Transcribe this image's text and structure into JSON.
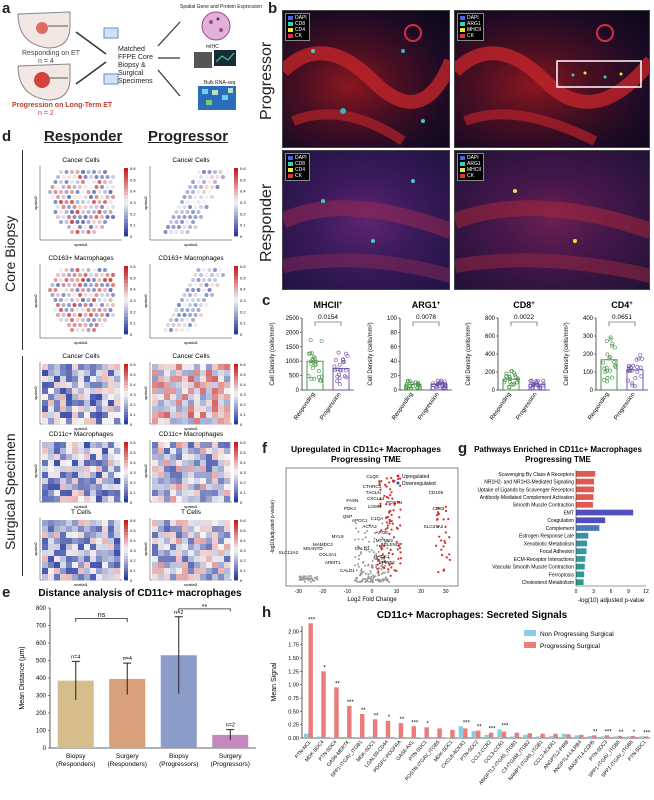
{
  "panel_labels": {
    "a": "a",
    "b": "b",
    "c": "c",
    "d": "d",
    "e": "e",
    "f": "f",
    "g": "g",
    "h": "h"
  },
  "panel_a": {
    "responding": "Responding on ET",
    "responding_n": "n = 4",
    "progression": "Progression on Long-Term ET",
    "progression_n": "n = 2",
    "matched": "Matched FFPE Core Biopsy & Surgical Specimens",
    "spatial_expr": "Spatial Gene and Protein Expression",
    "mihc": "mIHC",
    "bulk": "Bulk RNA-seq"
  },
  "panel_b": {
    "row_progressor": "Progressor",
    "row_responder": "Responder",
    "legend_left": [
      "DAPI",
      "CD8",
      "CD4",
      "CK"
    ],
    "legend_right": [
      "DAPI",
      "ARG1",
      "MHCII",
      "CK"
    ]
  },
  "panel_c": {
    "ylabel": "Cell Density (cells/mm²)",
    "xcats": [
      "Responding",
      "Progression"
    ],
    "plots": [
      {
        "title": "MHCII",
        "sup": "+",
        "p": "0.0154",
        "yticks": [
          "0",
          "500",
          "1000",
          "1500",
          "2000",
          "2500"
        ]
      },
      {
        "title": "ARG1",
        "sup": "+",
        "p": "0.0078",
        "yticks": [
          "0",
          "20",
          "40",
          "60",
          "80",
          "100"
        ]
      },
      {
        "title": "CD8",
        "sup": "+",
        "p": "0.0022",
        "yticks": [
          "0",
          "200",
          "400",
          "600",
          "800"
        ]
      },
      {
        "title": "CD4",
        "sup": "+",
        "p": "0.0651",
        "yticks": [
          "0",
          "100",
          "200",
          "300",
          "400"
        ]
      }
    ]
  },
  "panel_d": {
    "col_responder": "Responder",
    "col_progressor": "Progressor",
    "band_core": "Core Biopsy",
    "band_surgical": "Surgical Specimen",
    "spatial1": "spatial1",
    "spatial2": "spatial2",
    "core_titles": [
      "Cancer Cells",
      "Cancer Cells",
      "CD163+ Macrophages",
      "CD163+ Macrophages"
    ],
    "surg_titles": [
      "Cancer Cells",
      "Cancer Cells",
      "CD11c+ Macrophages",
      "CD11c+ Macrophages",
      "T Cells",
      "T Cells"
    ],
    "cb_ticks": [
      "0.6",
      "0.5",
      "0.4",
      "0.3",
      "0.2",
      "0.1",
      "0"
    ]
  },
  "panel_e": {
    "title": "Distance analysis of CD11c+ macrophages",
    "ylabel": "Mean Distance (µm)",
    "yticks": [
      "0",
      "100",
      "200",
      "300",
      "400",
      "500",
      "600",
      "700",
      "800"
    ],
    "ns": "ns",
    "sig": "**",
    "chart_data": {
      "type": "bar",
      "title": "Distance analysis of CD11c+ macrophages",
      "ylabel": "Mean Distance (µm)",
      "ylim": [
        0,
        800
      ],
      "categories": [
        "Biopsy (Responders)",
        "Surgery (Responders)",
        "Biopsy (Progressors)",
        "Surgery (Progressors)"
      ],
      "values": [
        385,
        395,
        530,
        75
      ],
      "errors": [
        110,
        90,
        220,
        30
      ],
      "n_labels": [
        "n=4",
        "n=4",
        "n=2",
        "n=2"
      ],
      "colors": [
        "#d6be8c",
        "#d9a07c",
        "#8b9cc8",
        "#c388be"
      ]
    },
    "xlabels": [
      [
        "Biopsy",
        "(Responders)"
      ],
      [
        "Surgery",
        "(Responders)"
      ],
      [
        "Biopsy",
        "(Progressors)"
      ],
      [
        "Surgery",
        "(Progressors)"
      ]
    ]
  },
  "panel_f": {
    "title_line1": "Upregulated in CD11c+ Macrophages",
    "title_line2": "Progressing TME",
    "xlabel": "Log2 Fold Change",
    "ylabel": "-log10(adjusted p-value)",
    "legend_up": "Upregulated",
    "legend_down": "Downregulated",
    "xticks": [
      "-30",
      "-20",
      "-10",
      "0",
      "10",
      "20",
      "30"
    ],
    "genes": [
      "C1QC",
      "CTHRC1",
      "TAGLN",
      "CXCL14",
      "FASN",
      "PDK4",
      "LGMN",
      "QSP",
      "APOC1",
      "ACTA2",
      "C1QA",
      "POSTN",
      "APOE",
      "MYL9",
      "MT-ND3",
      "SELENOP",
      "CALD1",
      "RACK1",
      "SPINT2",
      "COL4A1",
      "ARMT1",
      "CALD1",
      "MAMDC2",
      "MSANTD",
      "SLC12A2",
      "CD109",
      "CD83",
      "SLC37A2"
    ]
  },
  "panel_g": {
    "title_line1": "Pathways Enriched in CD11c+ Macrophages",
    "title_line2": "Progressing TME",
    "xlabel": "-log(10) adjusted p-value",
    "xticks": [
      "0",
      "3",
      "6",
      "9",
      "12"
    ],
    "chart_data": {
      "type": "bar",
      "orientation": "horizontal",
      "categories": [
        "Scavenging By Class A Receptors",
        "NR1H2- and NR1H3-Mediated Signaling",
        "Uptake of Ligands by Scavenger Receptors",
        "Antibody-Mediated Complement Activation",
        "Smooth Muscle Contraction",
        "EMT",
        "Coagulation",
        "Complement",
        "Estrogen Response Late",
        "Xenobiotic Metabolism",
        "Focal Adhesion",
        "ECM-Receptor Interactions",
        "Vascular Smooth Muscle Contraction",
        "Ferroptosis",
        "Cholesterol Metabolism"
      ],
      "values": [
        3.3,
        3.1,
        3.1,
        3.0,
        2.9,
        9.8,
        5.0,
        4.0,
        2.1,
        1.9,
        1.8,
        1.6,
        1.5,
        1.4,
        1.3
      ],
      "colors": [
        "#e05a52",
        "#e05a52",
        "#e05a52",
        "#e05a52",
        "#e05a52",
        "#4f4fbd",
        "#4f4fbd",
        "#4b79b8",
        "#3c8fa8",
        "#3c8fa8",
        "#3a97a0",
        "#3a97a0",
        "#2e9a8f",
        "#2e9a8f",
        "#2e9a8f"
      ],
      "xlim": [
        0,
        12
      ]
    }
  },
  "panel_h": {
    "title": "CD11c+ Macrophages: Secreted Signals",
    "ylabel": "Mean Signal",
    "legend_non": "Non Progressing Surgical",
    "legend_prog": "Progressing Surgical",
    "yticks": [
      "0.00",
      "0.25",
      "0.50",
      "0.75",
      "1.00",
      "1.25",
      "1.50",
      "1.75",
      "2.00"
    ],
    "chart_data": {
      "type": "bar",
      "ylim": [
        0,
        2.1
      ],
      "categories": [
        "PTN-NCL",
        "MDK-SDC4",
        "PTN-SDC4",
        "GAS6-MERTK",
        "SPP1-ITGAV_ITGB1",
        "MDK-SDC1",
        "LGALS9-CD44",
        "PDGFC-PDGFRA",
        "GAS6-AXL",
        "PTN-SDC1",
        "POSTN-ITGAV_ITGB5",
        "MDK-SDC1",
        "CXCL8-ACKR1",
        "PTN-SDC2",
        "CCL2-CCR2",
        "CCL3-CCR1",
        "ANGPTL2-ITGA5_ITGB1",
        "C3-ITGAM_ITGB2",
        "NAMPT-ITGA5_ITGB1",
        "CCL2-ACKR1",
        "ANGPTL2-PIRB",
        "ANGPTL4-LILRB4",
        "ANGPTL4-CDH5",
        "PTN-SDC3",
        "SPP1-ITGAV_ITGB5",
        "SPP1-ITGAV_ITGB6",
        "PTN-SDC1"
      ],
      "series": [
        {
          "name": "Non Progressing Surgical",
          "values": [
            0.08,
            0.03,
            0.01,
            0.02,
            0.02,
            0.03,
            0.02,
            0.01,
            0.02,
            0.01,
            0.02,
            0.01,
            0.22,
            0.13,
            0.06,
            0.16,
            0.03,
            0.06,
            0.03,
            0.04,
            0.08,
            0.05,
            0.04,
            0.03,
            0.03,
            0.03,
            0.03
          ],
          "color": "#87cde6"
        },
        {
          "name": "Progressing Surgical",
          "values": [
            2.15,
            1.25,
            0.95,
            0.6,
            0.45,
            0.35,
            0.32,
            0.28,
            0.22,
            0.2,
            0.18,
            0.15,
            0.18,
            0.14,
            0.1,
            0.12,
            0.1,
            0.09,
            0.08,
            0.08,
            0.07,
            0.06,
            0.05,
            0.05,
            0.04,
            0.04,
            0.03
          ],
          "color": "#e87d7a"
        }
      ],
      "sig": [
        "***",
        "*",
        "**",
        "***",
        "**",
        "**",
        "*",
        "**",
        "***",
        "*",
        "",
        "",
        "***",
        "**",
        "***",
        "***",
        "",
        "",
        "",
        "",
        "",
        "",
        "**",
        "***",
        "**",
        "*",
        "***"
      ]
    }
  }
}
